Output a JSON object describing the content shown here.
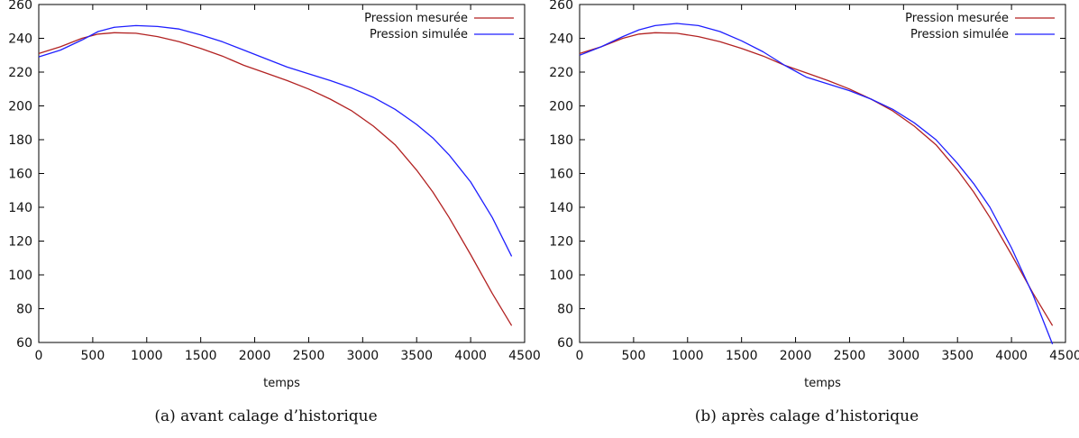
{
  "chart_data": [
    {
      "type": "line",
      "caption": "(a) avant calage d’historique",
      "xlabel": "temps",
      "ylabel": "",
      "xlim": [
        0,
        4500
      ],
      "ylim": [
        60,
        260
      ],
      "xticks": [
        0,
        500,
        1000,
        1500,
        2000,
        2500,
        3000,
        3500,
        4000,
        4500
      ],
      "yticks": [
        60,
        80,
        100,
        120,
        140,
        160,
        180,
        200,
        220,
        240,
        260
      ],
      "grid": false,
      "legend_position": "top-right",
      "series": [
        {
          "name": "Pression mesurée",
          "color": "#b22222",
          "x": [
            0,
            200,
            400,
            550,
            700,
            900,
            1100,
            1300,
            1500,
            1700,
            1900,
            2100,
            2300,
            2500,
            2700,
            2900,
            3100,
            3300,
            3500,
            3650,
            3800,
            4000,
            4200,
            4380
          ],
          "y": [
            231,
            235,
            240,
            242.5,
            243.3,
            243,
            241,
            238,
            234,
            229.5,
            224,
            219.5,
            215,
            210,
            204,
            197,
            188,
            177,
            162,
            149,
            134,
            112,
            89,
            70
          ]
        },
        {
          "name": "Pression simulée",
          "color": "#1f1fff",
          "x": [
            0,
            200,
            400,
            550,
            700,
            900,
            1100,
            1300,
            1500,
            1700,
            1900,
            2100,
            2300,
            2500,
            2700,
            2900,
            3100,
            3300,
            3500,
            3650,
            3800,
            4000,
            4200,
            4380
          ],
          "y": [
            229,
            233,
            239,
            244,
            246.5,
            247.5,
            247,
            245.5,
            242,
            238,
            233,
            228,
            223,
            219,
            215,
            210.5,
            205,
            198,
            189,
            181,
            171,
            155,
            134,
            111
          ]
        }
      ]
    },
    {
      "type": "line",
      "caption": "(b) après calage d’historique",
      "xlabel": "temps",
      "ylabel": "",
      "xlim": [
        0,
        4500
      ],
      "ylim": [
        60,
        260
      ],
      "xticks": [
        0,
        500,
        1000,
        1500,
        2000,
        2500,
        3000,
        3500,
        4000,
        4500
      ],
      "yticks": [
        60,
        80,
        100,
        120,
        140,
        160,
        180,
        200,
        220,
        240,
        260
      ],
      "grid": false,
      "legend_position": "top-right",
      "series": [
        {
          "name": "Pression mesurée",
          "color": "#b22222",
          "x": [
            0,
            200,
            400,
            550,
            700,
            900,
            1100,
            1300,
            1500,
            1700,
            1900,
            2100,
            2300,
            2500,
            2700,
            2900,
            3100,
            3300,
            3500,
            3650,
            3800,
            4000,
            4200,
            4380
          ],
          "y": [
            231,
            235,
            240,
            242.5,
            243.3,
            243,
            241,
            238,
            234,
            229.5,
            224,
            219.5,
            215,
            210,
            204,
            197,
            188,
            177,
            162,
            149,
            134,
            112,
            89,
            70
          ]
        },
        {
          "name": "Pression simulée",
          "color": "#1f1fff",
          "x": [
            0,
            200,
            400,
            550,
            700,
            900,
            1100,
            1300,
            1500,
            1700,
            1900,
            2100,
            2300,
            2500,
            2700,
            2900,
            3100,
            3300,
            3500,
            3650,
            3800,
            4000,
            4200,
            4380
          ],
          "y": [
            230,
            235,
            241,
            245,
            247.5,
            248.8,
            247.5,
            244,
            238.5,
            232,
            224,
            217,
            213,
            209,
            204,
            198,
            190,
            180,
            166,
            154,
            140,
            116,
            88,
            59
          ]
        }
      ]
    }
  ]
}
